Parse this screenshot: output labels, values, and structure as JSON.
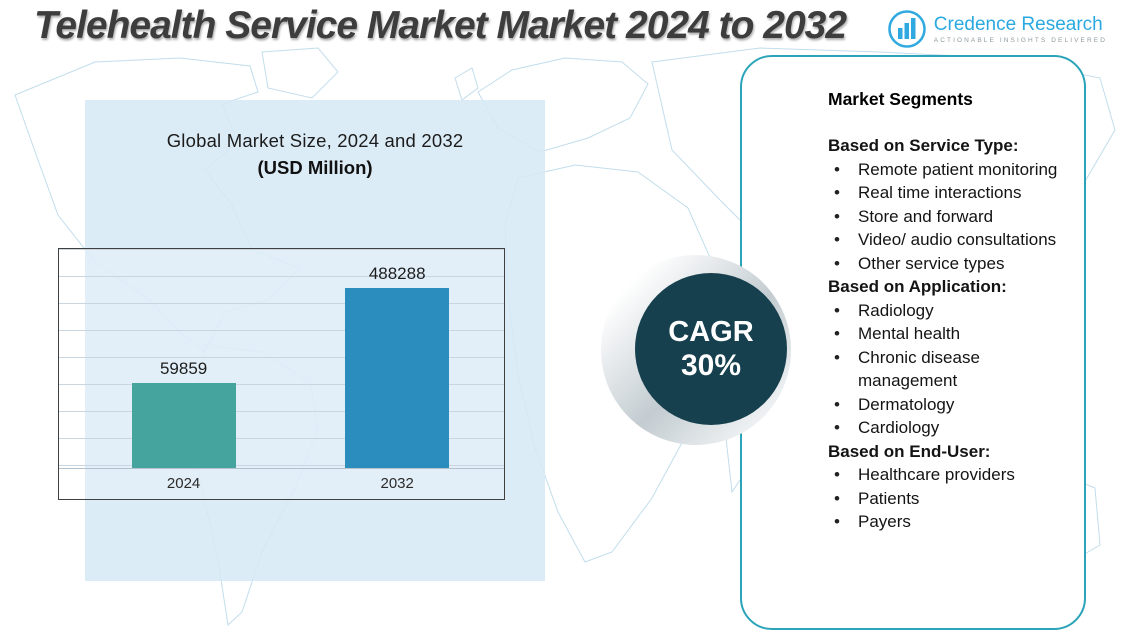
{
  "header": {
    "title": "Telehealth Service Market Market 2024 to 2032"
  },
  "logo": {
    "brand": "Credence Research",
    "tagline": "Actionable Insights Delivered"
  },
  "chart_data": {
    "type": "bar",
    "title": "Global Market Size, 2024 and 2032",
    "subtitle": "(USD Million)",
    "categories": [
      "2024",
      "2032"
    ],
    "values": [
      59859,
      488288
    ],
    "bar_colors": [
      "#46A49E",
      "#2B8CBE"
    ],
    "xlabel": "",
    "ylabel": "",
    "ylim": [
      0,
      500000
    ],
    "grid": true,
    "legend": false
  },
  "cagr": {
    "label": "CAGR",
    "value": "30%"
  },
  "segments": {
    "title": "Market Segments",
    "groups": [
      {
        "heading": "Based on Service Type:",
        "items": [
          "Remote patient monitoring",
          "Real time interactions",
          "Store and forward",
          "Video/ audio consultations",
          "Other service types"
        ]
      },
      {
        "heading": "Based on Application:",
        "items": [
          "Radiology",
          "Mental health",
          "Chronic disease management",
          "Dermatology",
          "Cardiology"
        ]
      },
      {
        "heading": "Based on End-User:",
        "items": [
          "Healthcare providers",
          "Patients",
          "Payers"
        ]
      }
    ]
  },
  "colors": {
    "brand_blue": "#2FA9DF",
    "panel_border": "#2BA4BA",
    "cagr_circle": "#17404F",
    "chart_panel_bg": "#D8EAF6",
    "title_text": "#3D3D3D"
  }
}
